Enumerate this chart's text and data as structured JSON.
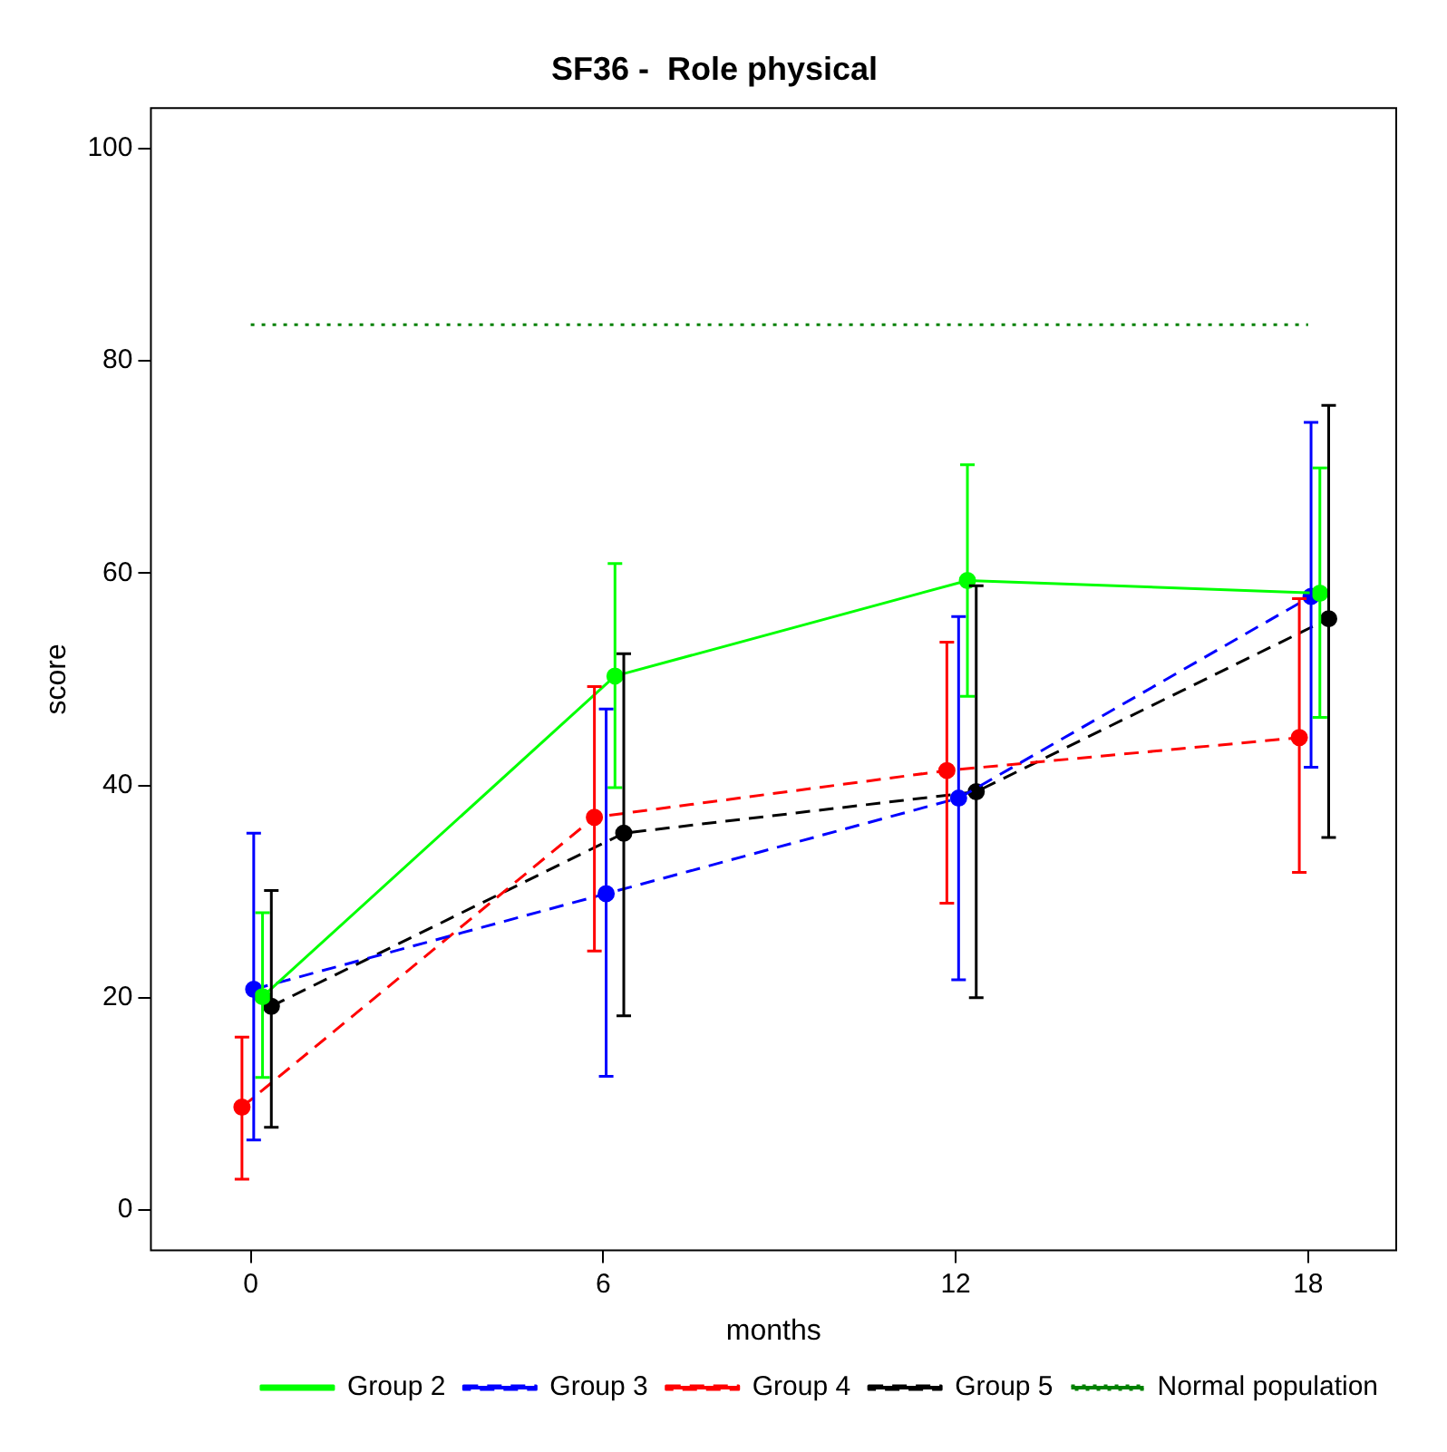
{
  "chart_data": {
    "type": "line",
    "title": "SF36 -  Role physical",
    "xlabel": "months",
    "ylabel": "score",
    "xlim": [
      -1.7,
      19.5
    ],
    "xticks": [
      0,
      6,
      12,
      18
    ],
    "ylim": [
      -3.8,
      103.8
    ],
    "yticks": [
      0,
      20,
      40,
      60,
      80,
      100
    ],
    "grid": false,
    "legend": "bottom right",
    "marker": "circle",
    "series": [
      {
        "name": "Group 2",
        "color": "#00ff00",
        "line_style": "solid",
        "x": [
          0.2,
          6.2,
          12.2,
          18.2
        ],
        "values": [
          20.1,
          50.3,
          59.3,
          58.1
        ],
        "errors": [
          [
            12.5,
            28.0
          ],
          [
            39.8,
            60.9
          ],
          [
            48.4,
            70.2
          ],
          [
            46.4,
            69.9
          ]
        ]
      },
      {
        "name": "Group 3",
        "color": "#0000ff",
        "line_style": "dashed",
        "x": [
          0.05,
          6.05,
          12.05,
          18.05
        ],
        "values": [
          20.8,
          29.8,
          38.8,
          57.8
        ],
        "errors": [
          [
            6.6,
            35.5
          ],
          [
            12.6,
            47.2
          ],
          17.1,
          [
            41.7,
            74.2
          ]
        ]
      },
      {
        "name": "Group 4",
        "color": "#ff0000",
        "line_style": "dashed",
        "x": [
          -0.15,
          5.85,
          11.85,
          17.85
        ],
        "values": [
          9.7,
          37.0,
          41.4,
          44.5
        ],
        "errors": [
          [
            2.9,
            16.3
          ],
          [
            24.4,
            49.3
          ],
          [
            28.9,
            53.5
          ],
          [
            31.8,
            57.6
          ]
        ]
      },
      {
        "name": "Group 5",
        "color": "#000000",
        "line_style": "dashed",
        "x": [
          0.35,
          6.35,
          12.35,
          18.35
        ],
        "values": [
          19.2,
          35.5,
          39.4,
          55.7
        ],
        "errors": [
          [
            7.8,
            30.1
          ],
          [
            18.3,
            52.4
          ],
          19.4,
          [
            35.1,
            75.8
          ]
        ]
      },
      {
        "name": "Normal population",
        "color": "#008000",
        "line_style": "dotted",
        "marker": "none",
        "x": [
          0,
          18
        ],
        "values": [
          83.4,
          83.4
        ]
      }
    ]
  }
}
